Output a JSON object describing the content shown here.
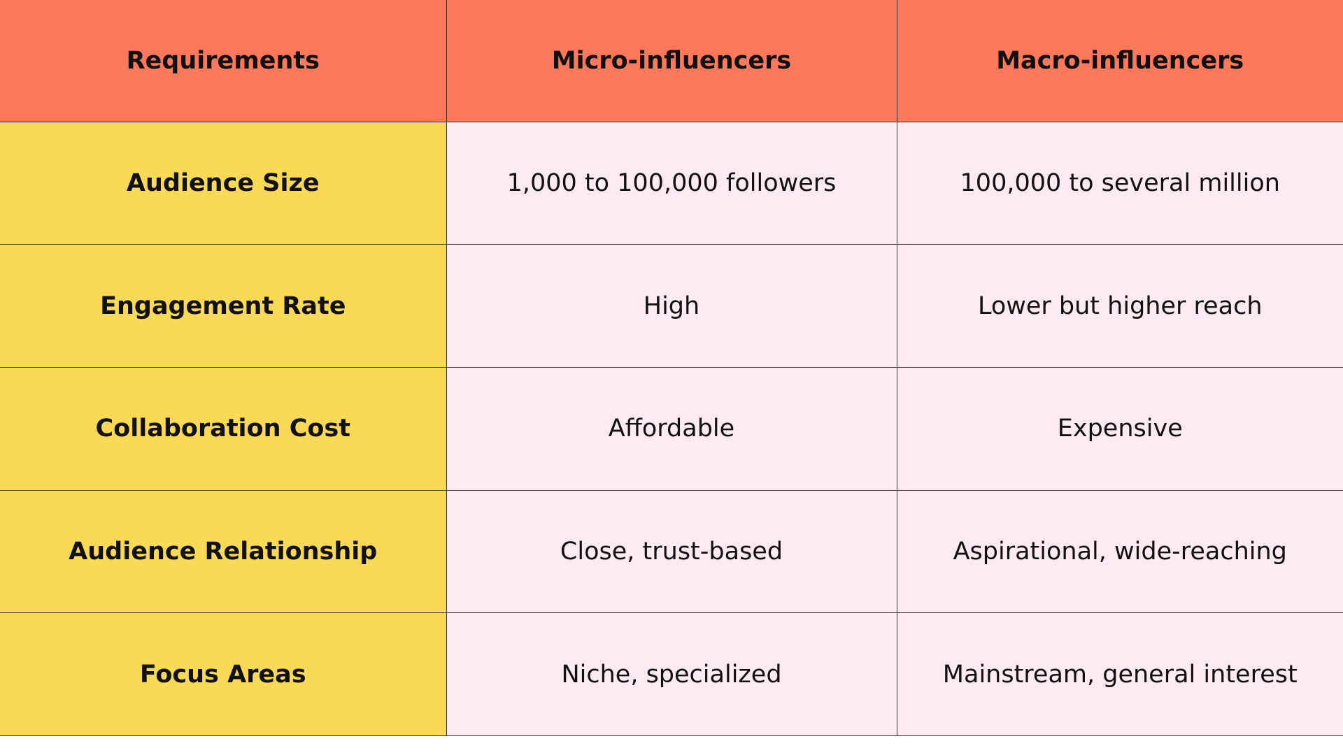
{
  "table": {
    "headers": [
      "Requirements",
      "Micro-influencers",
      "Macro-influencers"
    ],
    "rows": [
      [
        "Audience Size",
        "1,000 to 100,000 followers",
        "100,000 to several million"
      ],
      [
        "Engagement Rate",
        "High",
        "Lower but higher reach"
      ],
      [
        "Collaboration Cost",
        "Affordable",
        "Expensive"
      ],
      [
        "Audience Relationship",
        "Close, trust-based",
        "Aspirational, wide-reaching"
      ],
      [
        "Focus Areas",
        "Niche, specialized",
        "Mainstream, general interest"
      ]
    ]
  },
  "colors": {
    "header_background": "#fe785c",
    "requirement_background": "#fad956",
    "value_background": "#fdeaf3",
    "border": "#333333",
    "text": "#111111"
  }
}
